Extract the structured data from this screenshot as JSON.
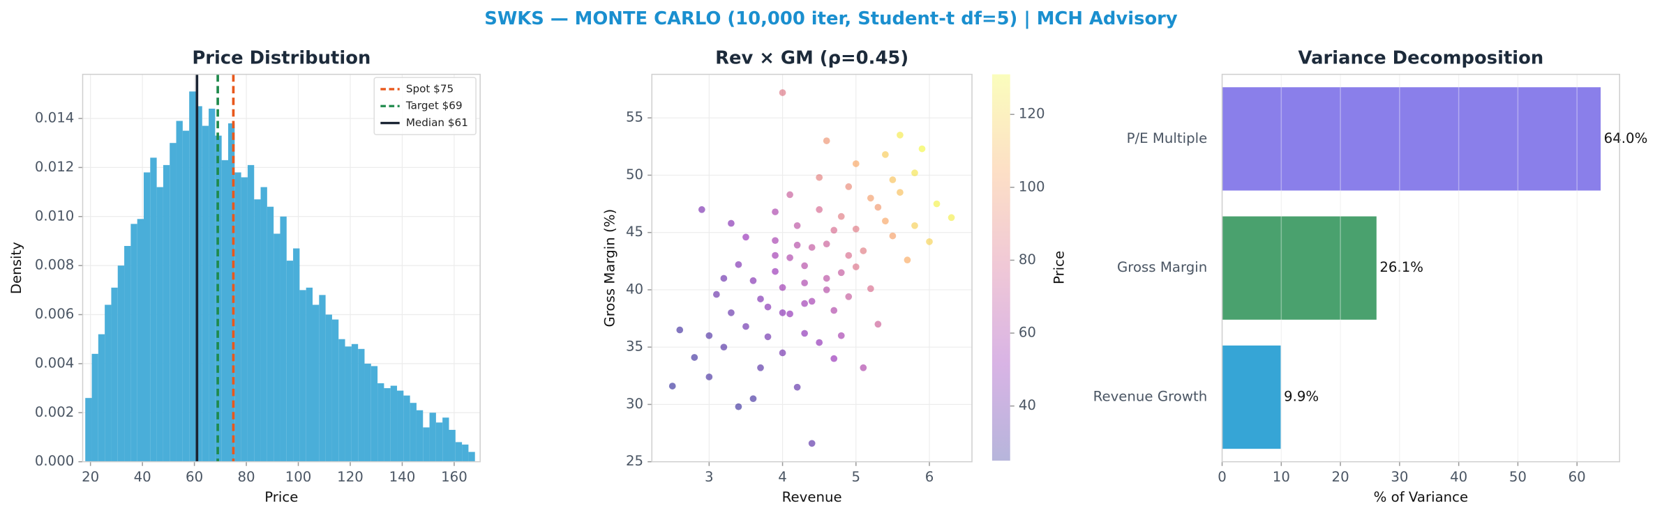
{
  "title": "SWKS — MONTE CARLO (10,000 iter, Student-t df=5) | MCH Advisory",
  "chart_data": [
    {
      "type": "histogram",
      "title": "Price Distribution",
      "xlabel": "Price",
      "ylabel": "Density",
      "bins": [
        18,
        20.5,
        23,
        25.5,
        28,
        30.5,
        33,
        35.5,
        38,
        40.5,
        43,
        45.5,
        48,
        50.5,
        53,
        55.5,
        58,
        60.5,
        63,
        65.5,
        68,
        70.5,
        73,
        75.5,
        78,
        80.5,
        83,
        85.5,
        88,
        90.5,
        93,
        95.5,
        98,
        100.5,
        103,
        105.5,
        108,
        110.5,
        113,
        115.5,
        118,
        120.5,
        123,
        125.5,
        128,
        130.5,
        133,
        135.5,
        138,
        140.5,
        143,
        145.5,
        148,
        150.5,
        153,
        155.5,
        158,
        160.5,
        163,
        165.5,
        168
      ],
      "values": [
        0.0026,
        0.0044,
        0.0052,
        0.0064,
        0.0071,
        0.008,
        0.0088,
        0.0097,
        0.0099,
        0.0118,
        0.0124,
        0.0112,
        0.0121,
        0.013,
        0.0139,
        0.0135,
        0.0151,
        0.0145,
        0.0137,
        0.0144,
        0.0133,
        0.0123,
        0.0138,
        0.0118,
        0.0116,
        0.0121,
        0.0107,
        0.0112,
        0.0104,
        0.0093,
        0.01,
        0.0082,
        0.0087,
        0.007,
        0.0071,
        0.0064,
        0.0068,
        0.006,
        0.0058,
        0.005,
        0.0047,
        0.0048,
        0.0046,
        0.004,
        0.0039,
        0.0032,
        0.003,
        0.0031,
        0.0029,
        0.0027,
        0.0024,
        0.0021,
        0.0014,
        0.002,
        0.0016,
        0.0018,
        0.0013,
        0.0008,
        0.0007,
        0.0004
      ],
      "color": "#4aaed9",
      "xlim": [
        17,
        170
      ],
      "ylim": [
        0,
        0.0158
      ],
      "xticks": [
        20,
        40,
        60,
        80,
        100,
        120,
        140,
        160
      ],
      "yticks": [
        {
          "value": 0,
          "label": "0.000"
        },
        {
          "value": 0.002,
          "label": "0.002"
        },
        {
          "value": 0.004,
          "label": "0.004"
        },
        {
          "value": 0.006,
          "label": "0.006"
        },
        {
          "value": 0.008,
          "label": "0.008"
        },
        {
          "value": 0.01,
          "label": "0.010"
        },
        {
          "value": 0.012,
          "label": "0.012"
        },
        {
          "value": 0.014,
          "label": "0.014"
        }
      ],
      "grid": true,
      "legend": "upper right",
      "vlines": [
        {
          "name": "Spot $75",
          "value": 75,
          "color": "#e8581c",
          "dashed": true
        },
        {
          "name": "Target $69",
          "value": 69,
          "color": "#1f8a4c",
          "dashed": true
        },
        {
          "name": "Median $61",
          "value": 61,
          "color": "#1a2433",
          "dashed": false
        }
      ]
    },
    {
      "type": "scatter",
      "title": "Rev × GM (ρ=0.45)",
      "xlabel": "Revenue",
      "ylabel": "Gross Margin (%)",
      "x": [
        4.0,
        4.3,
        3.8,
        4.6,
        5.0,
        3.5,
        4.1,
        4.8,
        5.3,
        3.9,
        4.4,
        3.2,
        5.6,
        4.2,
        4.7,
        3.6,
        5.1,
        4.0,
        4.5,
        3.3,
        5.8,
        4.9,
        3.7,
        4.3,
        5.2,
        2.8,
        4.6,
        3.9,
        5.5,
        4.1,
        6.1,
        3.4,
        4.8,
        5.0,
        4.2,
        3.1,
        5.4,
        4.7,
        3.8,
        4.5,
        2.6,
        5.7,
        4.0,
        4.4,
        3.5,
        5.9,
        4.9,
        3.0,
        4.6,
        3.6,
        5.2,
        4.3,
        3.9,
        5.3,
        4.1,
        6.3,
        3.3,
        4.7,
        5.6,
        4.4,
        2.9,
        4.0,
        5.0,
        3.7,
        4.8,
        3.2,
        5.1,
        4.5,
        2.5,
        5.5,
        4.2,
        3.4,
        6.0,
        4.6,
        3.9,
        5.4,
        4.3,
        3.0,
        5.8,
        4.9
      ],
      "y": [
        40.2,
        42.1,
        38.5,
        44.0,
        45.3,
        36.8,
        37.9,
        41.5,
        47.2,
        43.0,
        39.0,
        35.0,
        48.5,
        45.6,
        38.2,
        40.8,
        43.4,
        34.5,
        47.0,
        38.0,
        50.2,
        49.0,
        33.2,
        36.2,
        40.1,
        34.1,
        41.0,
        46.8,
        44.7,
        42.8,
        47.5,
        42.2,
        36.0,
        51.0,
        31.5,
        39.6,
        46.0,
        45.2,
        35.9,
        49.8,
        36.5,
        42.6,
        38.0,
        43.7,
        44.6,
        52.3,
        39.4,
        32.4,
        53.0,
        30.5,
        48.0,
        40.6,
        41.6,
        37.0,
        48.3,
        46.3,
        45.8,
        34.0,
        53.5,
        26.6,
        47.0,
        57.2,
        42.0,
        39.2,
        46.4,
        41.0,
        33.2,
        35.4,
        31.6,
        49.6,
        43.9,
        29.8,
        44.2,
        40.0,
        44.3,
        51.8,
        38.8,
        36.0,
        45.6,
        43.0
      ],
      "color_values": [
        55,
        64,
        47,
        73,
        85,
        40,
        50,
        70,
        98,
        56,
        57,
        33,
        112,
        67,
        62,
        46,
        86,
        42,
        78,
        38,
        124,
        92,
        34,
        49,
        80,
        28,
        66,
        60,
        101,
        61,
        128,
        45,
        58,
        104,
        36,
        39,
        103,
        79,
        41,
        88,
        29,
        105,
        48,
        69,
        52,
        130,
        71,
        30,
        96,
        29,
        100,
        60,
        53,
        74,
        72,
        127,
        47,
        52,
        126,
        35,
        44,
        84,
        82,
        45,
        86,
        40,
        61,
        50,
        26,
        113,
        64,
        27,
        118,
        64,
        58,
        116,
        55,
        32,
        117,
        80
      ],
      "colormap": [
        "#0d0887",
        "#7e03a8",
        "#cc4778",
        "#f89540",
        "#f0f921"
      ],
      "alpha": 0.3,
      "colorbar_label": "Price",
      "clim": [
        25,
        131
      ],
      "cticks": [
        40,
        60,
        80,
        100,
        120
      ],
      "xlim": [
        2.22,
        6.58
      ],
      "ylim": [
        25,
        58.8
      ],
      "xticks": [
        3,
        4,
        5,
        6
      ],
      "yticks": [
        25,
        30,
        35,
        40,
        45,
        50,
        55
      ],
      "grid": true
    },
    {
      "type": "barh",
      "title": "Variance Decomposition",
      "xlabel": "% of Variance",
      "categories": [
        "Revenue Growth",
        "Gross Margin",
        "P/E Multiple"
      ],
      "values": [
        9.9,
        26.1,
        64.0
      ],
      "value_labels": [
        "9.9%",
        "26.1%",
        "64.0%"
      ],
      "colors": [
        "#36a5d6",
        "#4aa16e",
        "#8a7fea"
      ],
      "xlim": [
        0,
        67.2
      ],
      "xticks": [
        0,
        10,
        20,
        30,
        40,
        50,
        60
      ],
      "grid": true
    }
  ]
}
